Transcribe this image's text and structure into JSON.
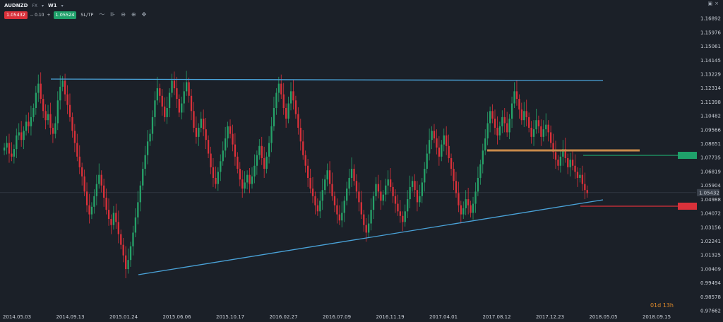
{
  "toolbar": {
    "symbol": "AUDNZD",
    "market": "FX",
    "timeframe": "W1",
    "sell_price": "1.05432",
    "spread": "-- 0.10",
    "plus": "+",
    "buy_price": "1.05524",
    "sltp_label": "SL/TP",
    "icons": [
      "line-style-icon",
      "indicators-icon",
      "zoom-out-icon",
      "zoom-in-icon",
      "crosshair-icon"
    ]
  },
  "colors": {
    "background": "#1b2028",
    "bull": "#26a269",
    "bear": "#d9313a",
    "trendline": "#4aa3d9",
    "support": "#c98a4a",
    "take_profit": "#1fa06a",
    "stop_loss": "#d9313a"
  },
  "timer": "01d 13h",
  "chart_data": {
    "type": "candlestick",
    "instrument": "AUDNZD",
    "timeframe": "W1",
    "current_price": "1.05432",
    "ylim": [
      0.97662,
      1.17272
    ],
    "y_ticks": [
      "1.16892",
      "1.15976",
      "1.15061",
      "1.14145",
      "1.13229",
      "1.12314",
      "1.11398",
      "1.10482",
      "1.09566",
      "1.08651",
      "1.07735",
      "1.06819",
      "1.05904",
      "1.04988",
      "1.04072",
      "1.03156",
      "1.02241",
      "1.01325",
      "1.00409",
      "0.99494",
      "0.98578",
      "0.97662"
    ],
    "x_ticks": [
      "2014.05.03",
      "2014.09.13",
      "2015.01.24",
      "2015.06.06",
      "2015.10.17",
      "2016.02.27",
      "2016.07.09",
      "2016.11.19",
      "2017.04.01",
      "2017.08.12",
      "2017.12.23",
      "2018.05.05",
      "2018.09.15"
    ],
    "x_range": [
      "2014.05.03",
      "2018.12.15"
    ],
    "candles_close": [
      1.084,
      1.087,
      1.08,
      1.078,
      1.083,
      1.092,
      1.094,
      1.089,
      1.095,
      1.101,
      1.098,
      1.104,
      1.11,
      1.12,
      1.126,
      1.116,
      1.108,
      1.102,
      1.106,
      1.097,
      1.093,
      1.1,
      1.115,
      1.124,
      1.128,
      1.119,
      1.112,
      1.104,
      1.095,
      1.087,
      1.078,
      1.071,
      1.065,
      1.055,
      1.046,
      1.04,
      1.045,
      1.052,
      1.06,
      1.066,
      1.059,
      1.051,
      1.043,
      1.037,
      1.033,
      1.041,
      1.035,
      1.027,
      1.02,
      1.013,
      1.004,
      1.01,
      1.019,
      1.028,
      1.038,
      1.048,
      1.059,
      1.07,
      1.079,
      1.088,
      1.093,
      1.104,
      1.115,
      1.123,
      1.118,
      1.111,
      1.104,
      1.11,
      1.12,
      1.128,
      1.123,
      1.116,
      1.107,
      1.113,
      1.121,
      1.127,
      1.118,
      1.108,
      1.097,
      1.091,
      1.097,
      1.103,
      1.096,
      1.089,
      1.08,
      1.071,
      1.064,
      1.06,
      1.068,
      1.075,
      1.082,
      1.09,
      1.098,
      1.093,
      1.086,
      1.078,
      1.07,
      1.063,
      1.057,
      1.061,
      1.066,
      1.06,
      1.065,
      1.072,
      1.079,
      1.085,
      1.077,
      1.07,
      1.078,
      1.087,
      1.098,
      1.11,
      1.12,
      1.126,
      1.119,
      1.11,
      1.103,
      1.113,
      1.121,
      1.115,
      1.106,
      1.097,
      1.088,
      1.079,
      1.072,
      1.064,
      1.057,
      1.052,
      1.046,
      1.042,
      1.049,
      1.056,
      1.063,
      1.069,
      1.06,
      1.052,
      1.046,
      1.04,
      1.036,
      1.041,
      1.049,
      1.057,
      1.064,
      1.07,
      1.062,
      1.055,
      1.048,
      1.04,
      1.033,
      1.028,
      1.034,
      1.043,
      1.052,
      1.06,
      1.055,
      1.049,
      1.053,
      1.059,
      1.063,
      1.058,
      1.052,
      1.047,
      1.042,
      1.039,
      1.035,
      1.042,
      1.05,
      1.058,
      1.062,
      1.056,
      1.048,
      1.052,
      1.061,
      1.07,
      1.08,
      1.089,
      1.095,
      1.09,
      1.084,
      1.078,
      1.086,
      1.092,
      1.085,
      1.077,
      1.07,
      1.062,
      1.054,
      1.046,
      1.04,
      1.044,
      1.05,
      1.046,
      1.041,
      1.047,
      1.055,
      1.064,
      1.073,
      1.082,
      1.09,
      1.1,
      1.108,
      1.103,
      1.097,
      1.092,
      1.098,
      1.104,
      1.1,
      1.094,
      1.103,
      1.113,
      1.121,
      1.116,
      1.109,
      1.102,
      1.108,
      1.104,
      1.097,
      1.091,
      1.096,
      1.102,
      1.098,
      1.091,
      1.096,
      1.099,
      1.094,
      1.087,
      1.081,
      1.076,
      1.072,
      1.078,
      1.083,
      1.077,
      1.071,
      1.076,
      1.072,
      1.068,
      1.064,
      1.066,
      1.06,
      1.056,
      1.054
    ]
  }
}
